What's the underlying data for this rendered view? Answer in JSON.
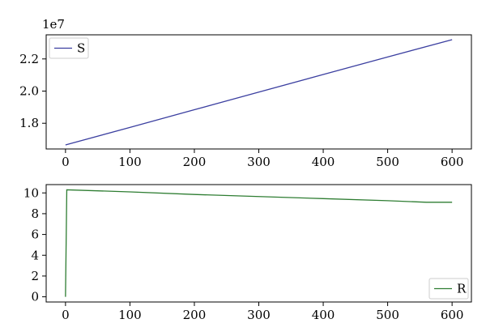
{
  "chart_data": [
    {
      "type": "line",
      "title": "",
      "xlabel": "",
      "ylabel": "",
      "offset_text": "1e7",
      "xlim": [
        -30,
        630
      ],
      "ylim": [
        16400000.0,
        23500000.0
      ],
      "xticks": [
        0,
        100,
        200,
        300,
        400,
        500,
        600
      ],
      "xtick_labels": [
        "0",
        "100",
        "200",
        "300",
        "400",
        "500",
        "600"
      ],
      "yticks": [
        18000000.0,
        20000000.0,
        22000000.0
      ],
      "ytick_labels": [
        "1.8",
        "2.0",
        "2.2"
      ],
      "grid": false,
      "legend_position": "top-left",
      "series": [
        {
          "name": "S",
          "color": "#3b3fa0",
          "x": [
            0,
            100,
            200,
            300,
            400,
            500,
            600
          ],
          "y": [
            16650000,
            17740000,
            18840000,
            19940000,
            21030000,
            22120000,
            23200000
          ]
        }
      ]
    },
    {
      "type": "line",
      "title": "",
      "xlabel": "",
      "ylabel": "",
      "xlim": [
        -30,
        630
      ],
      "ylim": [
        -0.5,
        10.8
      ],
      "xticks": [
        0,
        100,
        200,
        300,
        400,
        500,
        600
      ],
      "xtick_labels": [
        "0",
        "100",
        "200",
        "300",
        "400",
        "500",
        "600"
      ],
      "yticks": [
        0,
        2,
        4,
        6,
        8,
        10
      ],
      "ytick_labels": [
        "0",
        "2",
        "4",
        "6",
        "8",
        "10"
      ],
      "grid": false,
      "legend_position": "bottom-right",
      "series": [
        {
          "name": "R",
          "color": "#2e7d32",
          "x": [
            0,
            2,
            100,
            200,
            300,
            400,
            500,
            560,
            600
          ],
          "y": [
            0,
            10.3,
            10.1,
            9.85,
            9.65,
            9.45,
            9.25,
            9.1,
            9.1
          ]
        }
      ]
    }
  ]
}
